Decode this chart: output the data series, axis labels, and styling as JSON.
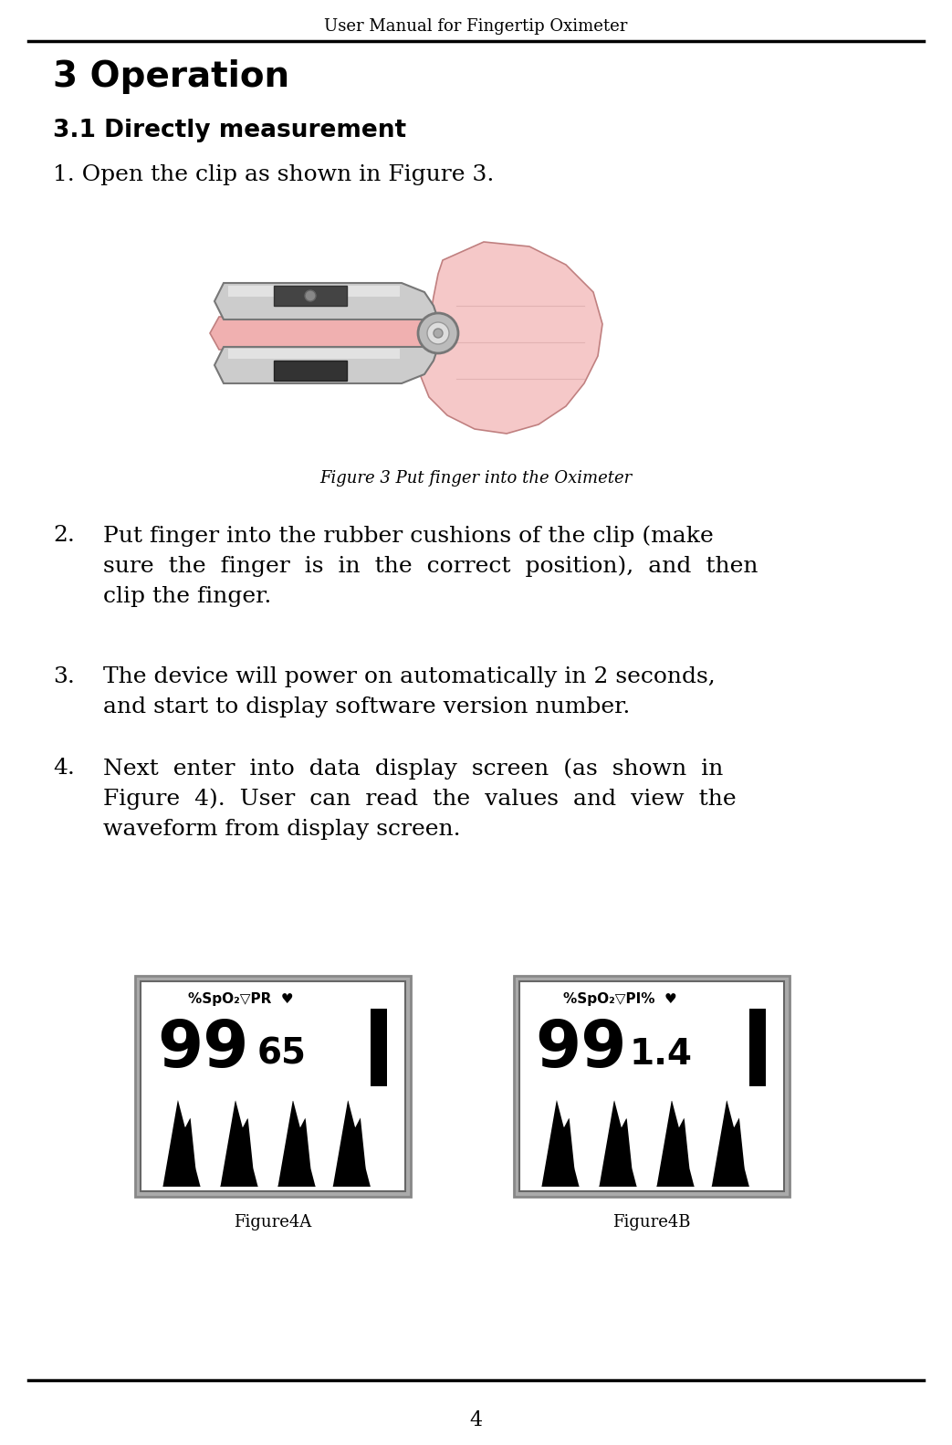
{
  "header_text": "User Manual for Fingertip Oximeter",
  "title": "3 Operation",
  "subtitle": "3.1 Directly measurement",
  "step1": "1. Open the clip as shown in Figure 3.",
  "figure3_caption": "Figure 3 Put finger into the Oximeter",
  "figure4a_caption": "Figure4A",
  "figure4b_caption": "Figure4B",
  "page_number": "4",
  "bg_color": "#ffffff",
  "text_color": "#000000",
  "header_font_size": 13,
  "title_font_size": 28,
  "subtitle_font_size": 19,
  "body_font_size": 18,
  "caption_font_size": 13,
  "status_font_size": 11,
  "big_num_font_size": 52,
  "small_num_font_size": 28
}
